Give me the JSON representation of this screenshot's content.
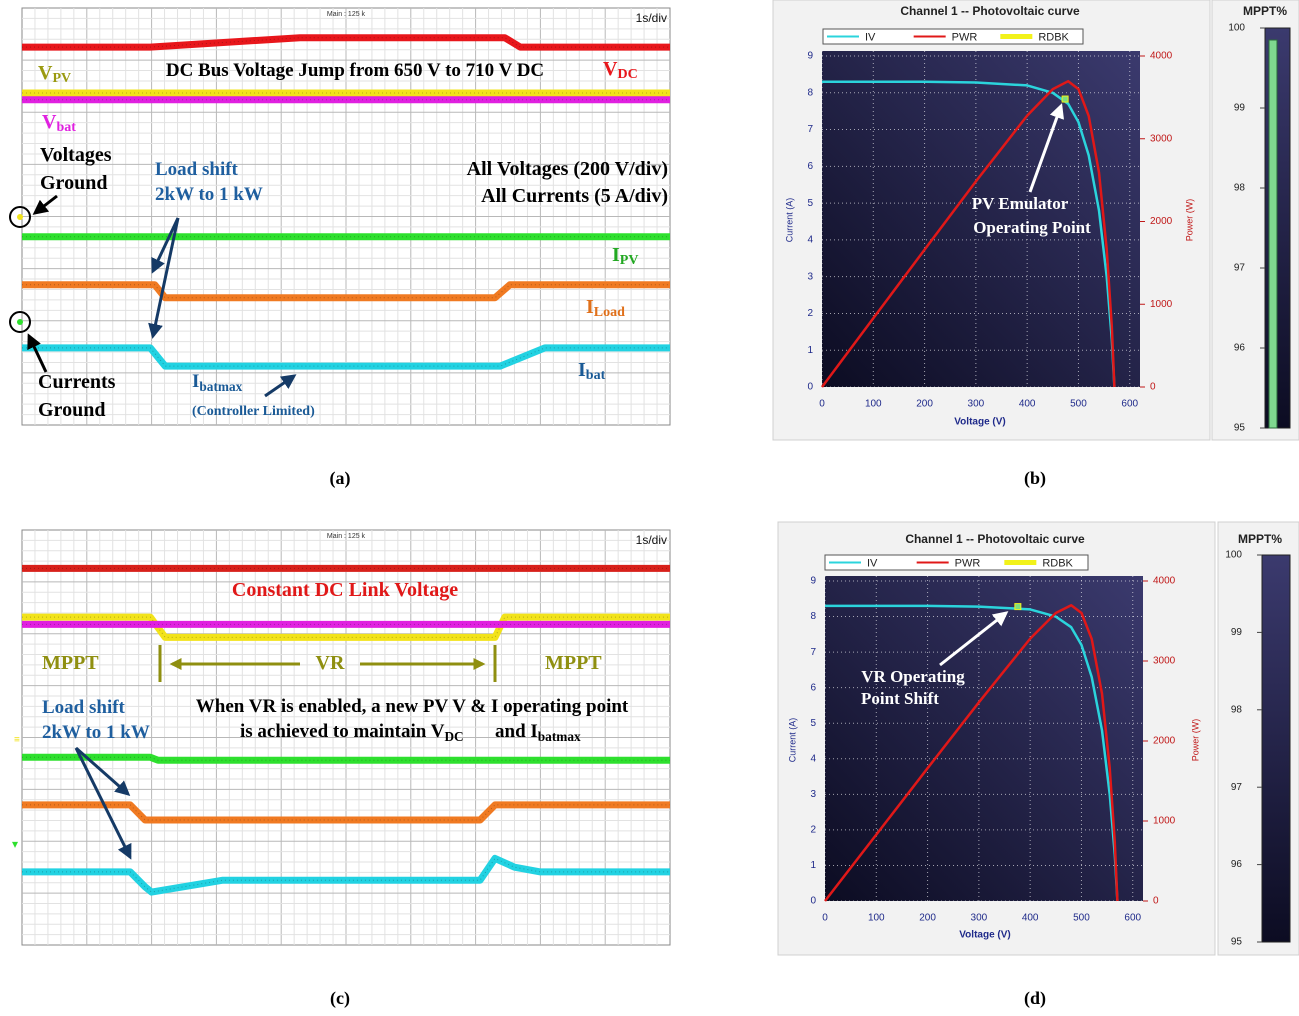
{
  "chart_data": [
    {
      "type": "oscilloscope",
      "label": "(a)",
      "header": "Main : 125 k",
      "timebase": "1s/div",
      "xlim": [
        0,
        10
      ],
      "ylim": [
        0,
        8
      ],
      "grid": true,
      "series": [
        {
          "name": "V",
          "subscript": "DC",
          "color": "#e8161b",
          "x": [
            0,
            1.98,
            4.29,
            7.45,
            7.69,
            10
          ],
          "values": [
            7.25,
            7.25,
            7.43,
            7.43,
            7.25,
            7.25
          ]
        },
        {
          "name": "V",
          "subscript": "PV",
          "color": "#f2e31a",
          "x": [
            0,
            10
          ],
          "values": [
            6.37,
            6.37
          ]
        },
        {
          "name": "V",
          "subscript": "bat",
          "color": "#e020e0",
          "x": [
            0,
            10
          ],
          "values": [
            6.24,
            6.24
          ]
        },
        {
          "name": "I",
          "subscript": "PV",
          "color": "#2ee02e",
          "x": [
            0,
            10
          ],
          "values": [
            3.61,
            3.61
          ]
        },
        {
          "name": "I",
          "subscript": "Load",
          "color": "#f07a22",
          "x": [
            0,
            2.05,
            2.21,
            7.3,
            7.53,
            10
          ],
          "values": [
            2.69,
            2.69,
            2.44,
            2.44,
            2.69,
            2.69
          ]
        },
        {
          "name": "I",
          "subscript": "bat",
          "color": "#22d2e2",
          "x": [
            0,
            1.98,
            2.21,
            7.38,
            8.07,
            10
          ],
          "values": [
            1.48,
            1.48,
            1.13,
            1.13,
            1.48,
            1.48
          ]
        }
      ],
      "annotations": [
        {
          "text": "DC Bus Voltage Jump from 650 V to 710 V DC"
        },
        {
          "text": "Voltages"
        },
        {
          "text": "Ground"
        },
        {
          "text": "Load shift"
        },
        {
          "text": "2kW to 1 kW"
        },
        {
          "text": "All Voltages (200 V/div)"
        },
        {
          "text": "All Currents (5 A/div)"
        },
        {
          "text": "Currents"
        },
        {
          "text": "Ground"
        },
        {
          "text": "I",
          "subscript": "batmax"
        },
        {
          "text": "(Controller Limited)"
        }
      ]
    },
    {
      "type": "line",
      "label": "(b)",
      "title": "Channel 1 -- Photovoltaic curve",
      "x_label": "Voltage (V)",
      "y_label": "Current (A)",
      "y2_label": "Power (W)",
      "xlim": [
        0,
        620
      ],
      "xticks": [
        0,
        100,
        200,
        300,
        400,
        500,
        600
      ],
      "ylim": [
        0,
        9
      ],
      "yticks": [
        0,
        1,
        2,
        3,
        4,
        5,
        6,
        7,
        8,
        9
      ],
      "y2lim": [
        0,
        4000
      ],
      "y2ticks": [
        0,
        1000,
        2000,
        3000,
        4000
      ],
      "grid": true,
      "x": [
        0,
        100,
        200,
        300,
        400,
        450,
        480,
        500,
        520,
        540,
        555,
        565,
        570
      ],
      "series": [
        {
          "name": "IV",
          "color": "#2bd4dc",
          "values": [
            8.3,
            8.3,
            8.3,
            8.28,
            8.2,
            8.0,
            7.7,
            7.2,
            6.3,
            4.8,
            3.0,
            1.3,
            0
          ]
        },
        {
          "name": "PWR",
          "color": "#e01818",
          "axis": "y2",
          "values": [
            0,
            830,
            1660,
            2484,
            3280,
            3600,
            3696,
            3600,
            3276,
            2592,
            1665,
            735,
            0
          ]
        },
        {
          "name": "RDBK",
          "color": "#f2f21a",
          "x": [
            474
          ],
          "values": [
            7.83
          ]
        }
      ],
      "annotations": [
        {
          "text": "PV Emulator"
        },
        {
          "text": "Operating Point"
        }
      ],
      "gauge": {
        "title": "MPPT%",
        "ylim": [
          95,
          100
        ],
        "yticks": [
          95,
          96,
          97,
          98,
          99,
          100
        ],
        "value": 99.85,
        "color": "#7fd88f"
      }
    },
    {
      "type": "oscilloscope",
      "label": "(c)",
      "header": "Main : 125 k",
      "timebase": "1s/div",
      "xlim": [
        0,
        10
      ],
      "ylim": [
        0,
        8
      ],
      "grid": true,
      "series": [
        {
          "color": "#d8201a",
          "x": [
            0,
            10
          ],
          "values": [
            7.26,
            7.26
          ]
        },
        {
          "color": "#f2e31a",
          "x": [
            0,
            1.98,
            2.21,
            7.3,
            7.45,
            10
          ],
          "values": [
            6.32,
            6.32,
            5.93,
            5.93,
            6.32,
            6.32
          ]
        },
        {
          "color": "#e020e0",
          "x": [
            0,
            10
          ],
          "values": [
            6.18,
            6.18
          ]
        },
        {
          "color": "#2ee02e",
          "x": [
            0,
            1.98,
            2.1,
            10
          ],
          "values": [
            3.62,
            3.62,
            3.56,
            3.56
          ]
        },
        {
          "color": "#f07a22",
          "x": [
            0,
            1.67,
            1.9,
            7.07,
            7.3,
            10
          ],
          "values": [
            2.7,
            2.7,
            2.41,
            2.41,
            2.7,
            2.7
          ]
        },
        {
          "color": "#22d2e2",
          "x": [
            0,
            1.67,
            1.9,
            2.0,
            3.1,
            7.07,
            7.3,
            7.6,
            8.0,
            10
          ],
          "values": [
            1.41,
            1.41,
            1.12,
            1.02,
            1.25,
            1.25,
            1.67,
            1.5,
            1.41,
            1.41
          ]
        }
      ],
      "annotations": [
        {
          "text": "Constant DC Link Voltage"
        },
        {
          "text": "MPPT"
        },
        {
          "text": "VR"
        },
        {
          "text": "MPPT"
        },
        {
          "text": "Load shift"
        },
        {
          "text": "2kW to 1 kW"
        },
        {
          "text": "When VR is enabled, a new PV V & I operating point"
        },
        {
          "text": "is achieved to maintain V",
          "subscript": "DC"
        },
        {
          "text": "and I",
          "subscript": "batmax"
        }
      ]
    },
    {
      "type": "line",
      "label": "(d)",
      "title": "Channel 1 -- Photovoltaic curve",
      "x_label": "Voltage (V)",
      "y_label": "Current (A)",
      "y2_label": "Power (W)",
      "xlim": [
        0,
        620
      ],
      "xticks": [
        0,
        100,
        200,
        300,
        400,
        500,
        600
      ],
      "ylim": [
        0,
        9
      ],
      "yticks": [
        0,
        1,
        2,
        3,
        4,
        5,
        6,
        7,
        8,
        9
      ],
      "y2lim": [
        0,
        4000
      ],
      "y2ticks": [
        0,
        1000,
        2000,
        3000,
        4000
      ],
      "grid": true,
      "x": [
        0,
        100,
        200,
        300,
        400,
        450,
        480,
        500,
        520,
        540,
        555,
        565,
        570
      ],
      "series": [
        {
          "name": "IV",
          "color": "#2bd4dc",
          "values": [
            8.3,
            8.3,
            8.3,
            8.28,
            8.2,
            8.0,
            7.7,
            7.2,
            6.3,
            4.8,
            3.0,
            1.3,
            0
          ]
        },
        {
          "name": "PWR",
          "color": "#e01818",
          "axis": "y2",
          "values": [
            0,
            830,
            1660,
            2484,
            3280,
            3600,
            3696,
            3600,
            3276,
            2592,
            1665,
            735,
            0
          ]
        },
        {
          "name": "RDBK",
          "color": "#f2f21a",
          "x": [
            376
          ],
          "values": [
            8.28
          ]
        }
      ],
      "annotations": [
        {
          "text": "VR Operating"
        },
        {
          "text": "Point Shift"
        }
      ],
      "gauge": {
        "title": "MPPT%",
        "ylim": [
          95,
          100
        ],
        "yticks": [
          95,
          96,
          97,
          98,
          99,
          100
        ]
      }
    }
  ]
}
